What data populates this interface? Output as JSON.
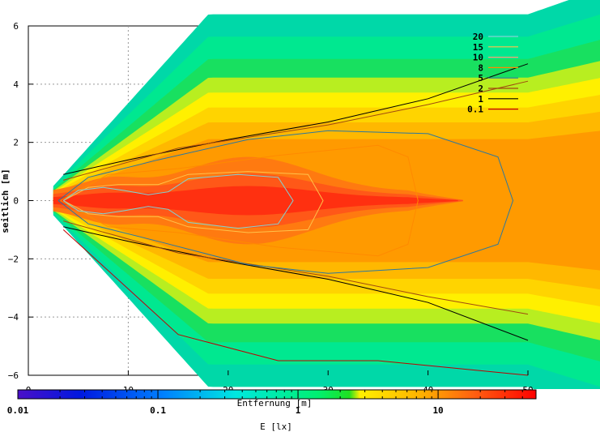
{
  "chart_data": {
    "type": "heatmap",
    "xlabel": "Entfernung [m]",
    "ylabel": "seitlich [m]",
    "xlim": [
      0,
      50
    ],
    "ylim": [
      -6,
      6
    ],
    "xticks": [
      0,
      10,
      20,
      30,
      40,
      50
    ],
    "yticks": [
      6,
      4,
      2,
      0,
      -2,
      -4,
      -6
    ],
    "grid": true,
    "colorbar": {
      "label": "E [lx]",
      "scale": "log",
      "range": [
        0.01,
        50
      ],
      "ticks": [
        "0.01",
        "0.1",
        "1",
        "10"
      ]
    },
    "legend": {
      "placement": "top-right",
      "entries": [
        {
          "label": "20",
          "color": "#7fd3d6"
        },
        {
          "label": "15",
          "color": "#ffc24a"
        },
        {
          "label": "10",
          "color": "#ffa070"
        },
        {
          "label": "8",
          "color": "#ff8a00"
        },
        {
          "label": "5",
          "color": "#2a78a0"
        },
        {
          "label": "2",
          "color": "#a04a10"
        },
        {
          "label": "1",
          "color": "#000000"
        },
        {
          "label": "0.1",
          "color": "#c00000"
        }
      ]
    },
    "contours": [
      {
        "level": "0.1",
        "points": [
          [
            3.5,
            -1.0
          ],
          [
            15,
            -4.6
          ],
          [
            25,
            -5.5
          ],
          [
            35,
            -5.5
          ],
          [
            50,
            -6.0
          ]
        ]
      },
      {
        "level": "1",
        "points": [
          [
            3.5,
            0.9
          ],
          [
            10,
            1.4
          ],
          [
            20,
            2.1
          ],
          [
            30,
            2.7
          ],
          [
            40,
            3.5
          ],
          [
            50,
            4.7
          ]
        ]
      },
      {
        "level": "1",
        "points": [
          [
            3.5,
            -0.9
          ],
          [
            10,
            -1.4
          ],
          [
            20,
            -2.1
          ],
          [
            30,
            -2.7
          ],
          [
            40,
            -3.5
          ],
          [
            50,
            -4.8
          ]
        ]
      },
      {
        "level": "2",
        "points": [
          [
            3.5,
            0.7
          ],
          [
            15,
            1.8
          ],
          [
            30,
            2.6
          ],
          [
            40,
            3.3
          ],
          [
            50,
            4.1
          ]
        ]
      },
      {
        "level": "2",
        "points": [
          [
            3.5,
            -0.7
          ],
          [
            15,
            -1.8
          ],
          [
            30,
            -2.6
          ],
          [
            40,
            -3.3
          ],
          [
            50,
            -3.9
          ]
        ]
      },
      {
        "level": "5",
        "points": [
          [
            3.0,
            0
          ],
          [
            6,
            0.8
          ],
          [
            13,
            1.4
          ],
          [
            22,
            2.1
          ],
          [
            30,
            2.4
          ],
          [
            40,
            2.3
          ],
          [
            47,
            1.5
          ],
          [
            48.5,
            0
          ],
          [
            47,
            -1.5
          ],
          [
            40,
            -2.3
          ],
          [
            30,
            -2.5
          ],
          [
            22,
            -2.2
          ],
          [
            13,
            -1.4
          ],
          [
            6,
            -0.8
          ],
          [
            3.0,
            0
          ]
        ]
      },
      {
        "level": "8",
        "points": [
          [
            3.2,
            0
          ],
          [
            8,
            0.9
          ],
          [
            15,
            1.1
          ],
          [
            25,
            1.55
          ],
          [
            35,
            1.9
          ],
          [
            38,
            1.5
          ],
          [
            39,
            0
          ],
          [
            38,
            -1.5
          ],
          [
            35,
            -1.9
          ],
          [
            25,
            -1.6
          ],
          [
            15,
            -1.1
          ],
          [
            8,
            -0.9
          ],
          [
            3.2,
            0
          ]
        ]
      },
      {
        "level": "15",
        "points": [
          [
            3.5,
            0
          ],
          [
            6,
            0.45
          ],
          [
            9,
            0.55
          ],
          [
            13,
            0.55
          ],
          [
            16,
            0.9
          ],
          [
            22,
            1.0
          ],
          [
            28,
            0.9
          ],
          [
            29.5,
            0
          ],
          [
            28,
            -1.0
          ],
          [
            22,
            -1.1
          ],
          [
            16,
            -0.9
          ],
          [
            13,
            -0.55
          ],
          [
            9,
            -0.55
          ],
          [
            6,
            -0.45
          ],
          [
            3.5,
            0
          ]
        ]
      },
      {
        "level": "20",
        "points": [
          [
            3.5,
            0
          ],
          [
            5,
            0.35
          ],
          [
            7.5,
            0.45
          ],
          [
            9.5,
            0.35
          ],
          [
            12,
            0.2
          ],
          [
            14,
            0.3
          ],
          [
            16,
            0.75
          ],
          [
            21,
            0.9
          ],
          [
            25,
            0.8
          ],
          [
            26.5,
            0
          ],
          [
            25,
            -0.8
          ],
          [
            21,
            -0.95
          ],
          [
            16,
            -0.75
          ],
          [
            14,
            -0.3
          ],
          [
            12,
            -0.2
          ],
          [
            9.5,
            -0.35
          ],
          [
            7.5,
            -0.45
          ],
          [
            5,
            -0.35
          ],
          [
            3.5,
            0
          ]
        ]
      }
    ]
  }
}
